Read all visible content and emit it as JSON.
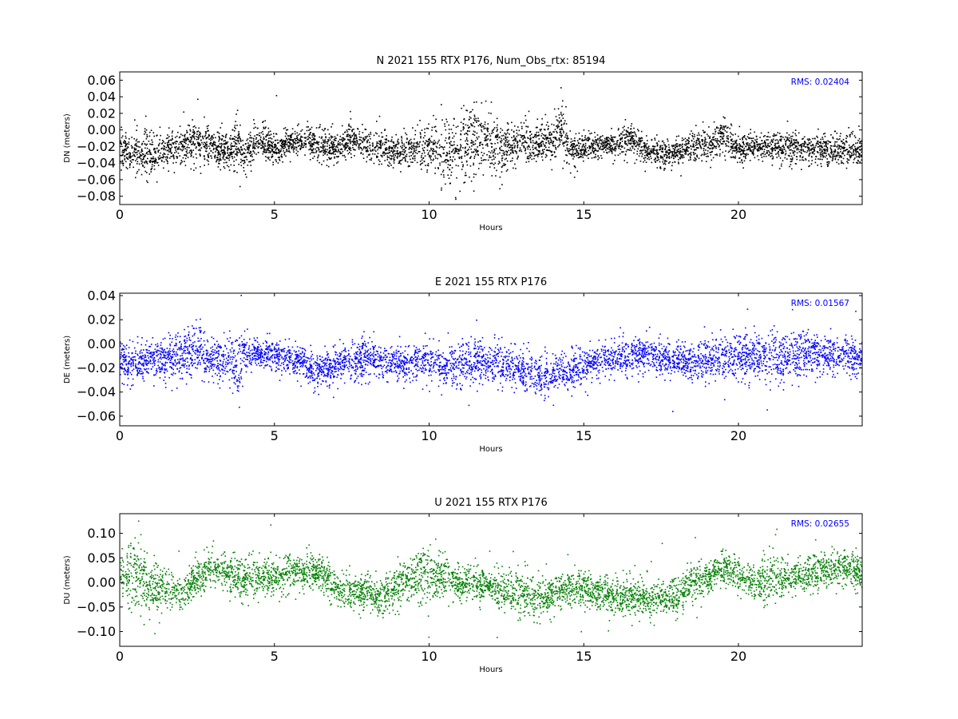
{
  "chart_data": [
    {
      "type": "scatter",
      "title": "N 2021 155 RTX  P176, Num_Obs_rtx: 85194",
      "xlabel": "Hours",
      "ylabel": "DN (meters)",
      "xlim": [
        0,
        24
      ],
      "ylim": [
        -0.09,
        0.07
      ],
      "xticks": [
        0,
        5,
        10,
        15,
        20
      ],
      "yticks": [
        -0.08,
        -0.06,
        -0.04,
        -0.02,
        0.0,
        0.02,
        0.04,
        0.06
      ],
      "ytick_labels": [
        "−0.08",
        "−0.06",
        "−0.04",
        "−0.02",
        "0.00",
        "0.02",
        "0.04",
        "0.06"
      ],
      "color": "#000000",
      "annotation": "RMS:  0.02404",
      "annotation_color": "#0000ff",
      "annotation_position": "top-right",
      "series": [
        {
          "x": [
            0,
            0.5,
            1,
            1.5,
            2,
            2.5,
            3,
            3.5,
            3.8,
            4,
            4.5,
            5,
            5.5,
            6,
            6.5,
            7,
            7.5,
            8,
            8.5,
            9,
            9.5,
            10,
            10.5,
            11,
            11.5,
            12,
            12.5,
            13,
            13.5,
            14,
            14.3,
            14.5,
            15,
            15.5,
            16,
            16.5,
            17,
            17.5,
            18,
            18.5,
            19,
            19.5,
            20,
            20.5,
            21,
            21.5,
            22,
            22.5,
            23,
            23.5,
            24
          ],
          "mean": [
            -0.025,
            -0.027,
            -0.03,
            -0.022,
            -0.018,
            -0.012,
            -0.02,
            -0.025,
            -0.015,
            -0.03,
            -0.01,
            -0.022,
            -0.015,
            -0.012,
            -0.02,
            -0.02,
            -0.012,
            -0.018,
            -0.022,
            -0.025,
            -0.022,
            -0.02,
            -0.028,
            -0.02,
            -0.01,
            -0.018,
            -0.02,
            -0.012,
            -0.015,
            -0.01,
            0.005,
            -0.025,
            -0.02,
            -0.018,
            -0.018,
            -0.01,
            -0.025,
            -0.028,
            -0.025,
            -0.02,
            -0.018,
            -0.005,
            -0.022,
            -0.02,
            -0.02,
            -0.02,
            -0.022,
            -0.02,
            -0.025,
            -0.02,
            -0.025
          ],
          "spread": [
            0.012,
            0.012,
            0.016,
            0.012,
            0.012,
            0.015,
            0.012,
            0.012,
            0.018,
            0.012,
            0.01,
            0.01,
            0.009,
            0.01,
            0.01,
            0.01,
            0.011,
            0.01,
            0.01,
            0.01,
            0.012,
            0.016,
            0.02,
            0.022,
            0.026,
            0.022,
            0.015,
            0.014,
            0.014,
            0.014,
            0.018,
            0.012,
            0.008,
            0.008,
            0.008,
            0.01,
            0.01,
            0.009,
            0.009,
            0.009,
            0.01,
            0.012,
            0.009,
            0.009,
            0.01,
            0.01,
            0.01,
            0.01,
            0.011,
            0.011,
            0.011
          ]
        }
      ]
    },
    {
      "type": "scatter",
      "title": "E 2021 155 RTX  P176",
      "xlabel": "Hours",
      "ylabel": "DE (meters)",
      "xlim": [
        0,
        24
      ],
      "ylim": [
        -0.068,
        0.042
      ],
      "xticks": [
        0,
        5,
        10,
        15,
        20
      ],
      "yticks": [
        -0.06,
        -0.04,
        -0.02,
        0.0,
        0.02,
        0.04
      ],
      "ytick_labels": [
        "−0.06",
        "−0.04",
        "−0.02",
        "0.00",
        "0.02",
        "0.04"
      ],
      "color": "#0000ff",
      "annotation": "RMS:  0.01567",
      "annotation_color": "#0000ff",
      "annotation_position": "top-right",
      "series": [
        {
          "x": [
            0,
            0.5,
            1,
            1.5,
            2,
            2.5,
            3,
            3.5,
            3.75,
            4,
            4.5,
            5,
            5.5,
            6,
            6.5,
            7,
            7.5,
            8,
            8.5,
            9,
            9.5,
            10,
            10.5,
            11,
            11.5,
            12,
            12.5,
            13,
            13.5,
            14,
            14.5,
            15,
            15.5,
            16,
            16.5,
            17,
            17.5,
            18,
            18.5,
            19,
            19.5,
            20,
            20.5,
            21,
            21.5,
            22,
            22.5,
            23,
            23.5,
            24
          ],
          "mean": [
            -0.015,
            -0.014,
            -0.012,
            -0.012,
            -0.008,
            -0.006,
            -0.012,
            -0.014,
            -0.02,
            -0.006,
            -0.008,
            -0.008,
            -0.012,
            -0.018,
            -0.022,
            -0.016,
            -0.014,
            -0.012,
            -0.014,
            -0.016,
            -0.014,
            -0.014,
            -0.018,
            -0.016,
            -0.012,
            -0.016,
            -0.018,
            -0.022,
            -0.026,
            -0.024,
            -0.022,
            -0.018,
            -0.014,
            -0.012,
            -0.008,
            -0.008,
            -0.01,
            -0.014,
            -0.014,
            -0.012,
            -0.01,
            -0.008,
            -0.01,
            -0.01,
            -0.012,
            -0.008,
            -0.008,
            -0.01,
            -0.01,
            -0.012
          ],
          "spread": [
            0.009,
            0.008,
            0.008,
            0.01,
            0.012,
            0.014,
            0.01,
            0.009,
            0.018,
            0.008,
            0.007,
            0.007,
            0.007,
            0.008,
            0.008,
            0.008,
            0.008,
            0.009,
            0.008,
            0.008,
            0.008,
            0.01,
            0.009,
            0.01,
            0.011,
            0.01,
            0.009,
            0.009,
            0.009,
            0.009,
            0.008,
            0.007,
            0.007,
            0.008,
            0.009,
            0.008,
            0.007,
            0.008,
            0.008,
            0.009,
            0.01,
            0.01,
            0.01,
            0.011,
            0.011,
            0.01,
            0.009,
            0.008,
            0.008,
            0.008
          ]
        }
      ]
    },
    {
      "type": "scatter",
      "title": "U 2021 155 RTX  P176",
      "xlabel": "Hours",
      "ylabel": "DU (meters)",
      "xlim": [
        0,
        24
      ],
      "ylim": [
        -0.13,
        0.14
      ],
      "xticks": [
        0,
        5,
        10,
        15,
        20
      ],
      "yticks": [
        -0.1,
        -0.05,
        0.0,
        0.05,
        0.1
      ],
      "ytick_labels": [
        "−0.10",
        "−0.05",
        "0.00",
        "0.05",
        "0.10"
      ],
      "color": "#008000",
      "annotation": "RMS:  0.02655",
      "annotation_color": "#0000ff",
      "annotation_position": "top-right",
      "series": [
        {
          "x": [
            0,
            0.5,
            1,
            1.5,
            2,
            2.5,
            3,
            3.5,
            3.75,
            4,
            4.5,
            5,
            5.5,
            6,
            6.5,
            7,
            7.5,
            8,
            8.5,
            9,
            9.5,
            10,
            10.5,
            11,
            11.5,
            12,
            12.5,
            13,
            13.5,
            14,
            14.5,
            15,
            15.5,
            16,
            16.5,
            17,
            17.5,
            18,
            18.5,
            19,
            19.5,
            20,
            20.5,
            21,
            21.5,
            22,
            22.5,
            23,
            23.5,
            24
          ],
          "mean": [
            0.01,
            0.02,
            -0.01,
            -0.01,
            -0.02,
            0.01,
            0.03,
            0.02,
            0.01,
            0.01,
            0.01,
            0.01,
            0.02,
            0.02,
            0.02,
            -0.01,
            -0.02,
            -0.02,
            -0.03,
            0,
            0.01,
            0.02,
            0.01,
            0,
            0,
            -0.01,
            -0.02,
            -0.02,
            -0.03,
            -0.02,
            -0.01,
            -0.01,
            -0.02,
            -0.03,
            -0.03,
            -0.03,
            -0.03,
            -0.03,
            0,
            0.01,
            0.03,
            0.02,
            0,
            0.01,
            0.01,
            0.02,
            0.02,
            0.03,
            0.03,
            0.02
          ],
          "spread": [
            0.025,
            0.04,
            0.03,
            0.02,
            0.02,
            0.02,
            0.02,
            0.02,
            0.025,
            0.02,
            0.02,
            0.02,
            0.02,
            0.02,
            0.02,
            0.02,
            0.02,
            0.02,
            0.02,
            0.025,
            0.03,
            0.03,
            0.025,
            0.02,
            0.02,
            0.02,
            0.025,
            0.025,
            0.025,
            0.02,
            0.02,
            0.02,
            0.02,
            0.02,
            0.02,
            0.02,
            0.02,
            0.02,
            0.02,
            0.02,
            0.02,
            0.02,
            0.02,
            0.03,
            0.02,
            0.02,
            0.02,
            0.02,
            0.02,
            0.02
          ]
        }
      ]
    }
  ]
}
